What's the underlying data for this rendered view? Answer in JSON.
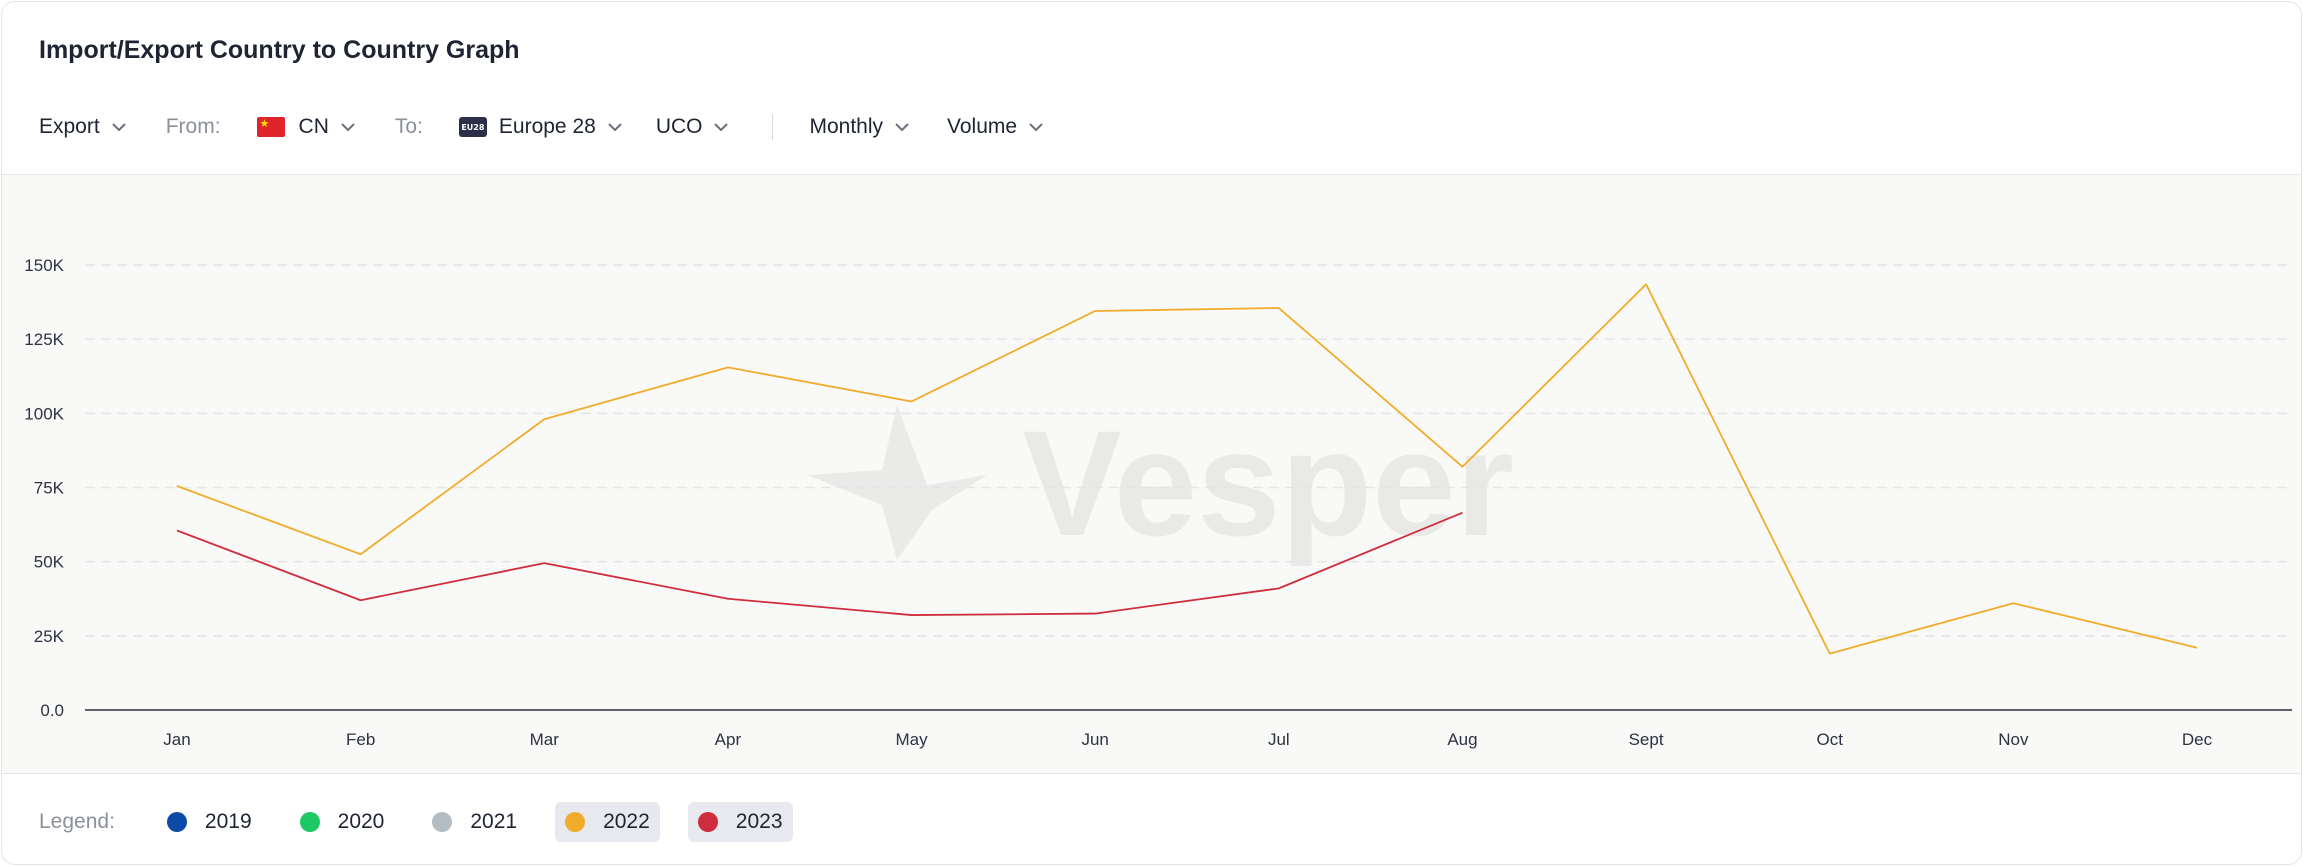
{
  "header": {
    "title": "Import/Export Country to Country Graph"
  },
  "controls": {
    "direction": "Export",
    "from_label": "From:",
    "from_value": "CN",
    "to_label": "To:",
    "to_badge": "EU28",
    "to_value": "Europe 28",
    "product": "UCO",
    "period": "Monthly",
    "metric": "Volume"
  },
  "watermark": {
    "text": "Vesper"
  },
  "legend": {
    "label": "Legend:",
    "items": [
      {
        "name": "2019",
        "color": "#0b4aa6",
        "active": false
      },
      {
        "name": "2020",
        "color": "#1ec862",
        "active": false
      },
      {
        "name": "2021",
        "color": "#b3bcc3",
        "active": false
      },
      {
        "name": "2022",
        "color": "#f1ac2b",
        "active": true
      },
      {
        "name": "2023",
        "color": "#cf2d3d",
        "active": true
      }
    ]
  },
  "chart_data": {
    "type": "line",
    "categories": [
      "Jan",
      "Feb",
      "Mar",
      "Apr",
      "May",
      "Jun",
      "Jul",
      "Aug",
      "Sept",
      "Oct",
      "Nov",
      "Dec"
    ],
    "ylim": [
      0,
      150000
    ],
    "yticks": [
      0,
      25000,
      50000,
      75000,
      100000,
      125000,
      150000
    ],
    "ytick_labels": [
      "0.0",
      "25K",
      "50K",
      "75K",
      "100K",
      "125K",
      "150K"
    ],
    "grid": true,
    "legend_position": "bottom",
    "series": [
      {
        "name": "2022",
        "color": "#f1ac2b",
        "values": [
          75500,
          52500,
          98000,
          115500,
          104000,
          134500,
          135500,
          82000,
          143500,
          19000,
          36000,
          21000
        ]
      },
      {
        "name": "2023",
        "color": "#cf2d3d",
        "values": [
          60500,
          37000,
          49500,
          37500,
          32000,
          32500,
          41000,
          66500,
          null,
          null,
          null,
          null
        ]
      }
    ]
  }
}
